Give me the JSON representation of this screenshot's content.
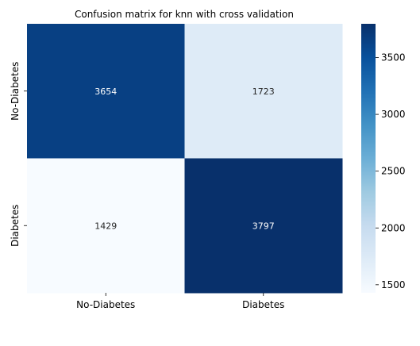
{
  "chart_data": {
    "type": "heatmap",
    "title": "Confusion matrix for knn with cross validation",
    "xlabel": "",
    "ylabel": "",
    "x_categories": [
      "No-Diabetes",
      "Diabetes"
    ],
    "y_categories": [
      "No-Diabetes",
      "Diabetes"
    ],
    "values": [
      [
        3654,
        1723
      ],
      [
        1429,
        3797
      ]
    ],
    "colormap": "Blues",
    "colorbar": {
      "range": [
        1429,
        3797
      ],
      "ticks": [
        1500,
        2000,
        2500,
        3000,
        3500
      ]
    },
    "annotation_colors": {
      "on_dark": "#ffffff",
      "on_light": "#262626"
    }
  }
}
